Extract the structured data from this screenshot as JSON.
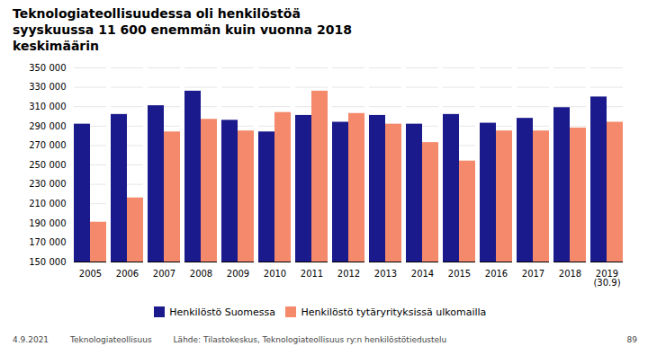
{
  "chart_data": {
    "type": "bar",
    "title": "Teknologiateollisuudessa oli henkilöstöä\nsyyskuussa 11 600 enemmän kuin vuonna 2018\nkeskimäärin",
    "categories": [
      "2005",
      "2006",
      "2007",
      "2008",
      "2009",
      "2010",
      "2011",
      "2012",
      "2013",
      "2014",
      "2015",
      "2016",
      "2017",
      "2018",
      "2019"
    ],
    "series": [
      {
        "name": "Henkilöstö Suomessa",
        "color": "#1a1a8c",
        "values": [
          292000,
          302000,
          311000,
          326000,
          296000,
          284000,
          301000,
          294000,
          301000,
          292000,
          302000,
          293000,
          298000,
          309000,
          320000
        ]
      },
      {
        "name": "Henkilöstö tytäryrityksissä ulkomailla",
        "color": "#f4896b",
        "values": [
          191000,
          216000,
          284000,
          297000,
          285000,
          304000,
          326000,
          303000,
          292000,
          273000,
          254000,
          285000,
          285000,
          288000,
          294000
        ]
      }
    ],
    "ylim": [
      150000,
      350000
    ],
    "yticks": [
      {
        "value": 150000,
        "label": "150 000"
      },
      {
        "value": 170000,
        "label": "170 000"
      },
      {
        "value": 190000,
        "label": "190 000"
      },
      {
        "value": 210000,
        "label": "210 000"
      },
      {
        "value": 230000,
        "label": "230 000"
      },
      {
        "value": 250000,
        "label": "250 000"
      },
      {
        "value": 270000,
        "label": "270 000"
      },
      {
        "value": 290000,
        "label": "290 000"
      },
      {
        "value": 310000,
        "label": "310 000"
      },
      {
        "value": 330000,
        "label": "330 000"
      },
      {
        "value": 350000,
        "label": "350 000"
      }
    ],
    "annotations": [
      {
        "text": "(30.9)",
        "x": "2019"
      }
    ],
    "footer": [
      "4.9.2021",
      "Teknologiateollisuus",
      "Lähde: Tilastokeskus, Teknologiateollisuus ry:n henkilöstötiedustelu",
      "89"
    ],
    "grid": true,
    "legend": "bottom"
  }
}
